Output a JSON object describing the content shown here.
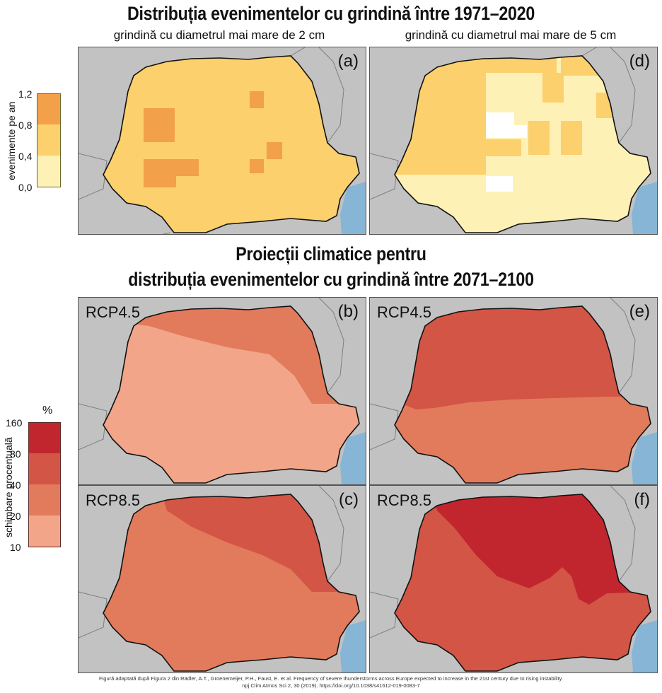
{
  "titles": {
    "top": "Distribuția evenimentelor cu grindină între 1971–2020",
    "middle_line1": "Proiecții climatice pentru",
    "middle_line2": "distribuția evenimentelor cu grindină între 2071–2100"
  },
  "subtitles": {
    "left": "grindină cu diametrul mai mare de 2 cm",
    "right": "grindină cu diametrul mai mare de 5 cm"
  },
  "panels": {
    "a": {
      "label": "(a)"
    },
    "d": {
      "label": "(d)"
    },
    "b": {
      "label": "(b)",
      "scenario": "RCP4.5"
    },
    "e": {
      "label": "(e)",
      "scenario": "RCP4.5"
    },
    "c": {
      "label": "(c)",
      "scenario": "RCP8.5"
    },
    "f": {
      "label": "(f)",
      "scenario": "RCP8.5"
    }
  },
  "legend_top": {
    "label": "evenimente pe an",
    "ticks": [
      "1,2",
      "0,8",
      "0,4",
      "0,0"
    ],
    "colors": [
      "#f3a04a",
      "#fbd06d",
      "#fdf1b6"
    ]
  },
  "legend_bottom": {
    "label": "schimbare procentuală",
    "unit": "%",
    "ticks": [
      "160",
      "80",
      "40",
      "20",
      "10"
    ],
    "colors": [
      "#c1262f",
      "#d25546",
      "#e27a5c",
      "#f2a588"
    ]
  },
  "colors": {
    "land_grey": "#c2c2c2",
    "sea": "#86b5d6",
    "border": "#7e7e7e"
  },
  "credit": {
    "line1": "Figură adaptată după Figura 2 din Rädler, A.T., Groenemeijer, P.H., Faust, E. et al. Frequency of severe thunderstorms across Europe expected to increase in the 21st century due to rising instability.",
    "line2": "npj Clim Atmos Sci 2, 30 (2019). https://doi.org/10.1038/s41612-019-0083-7"
  }
}
